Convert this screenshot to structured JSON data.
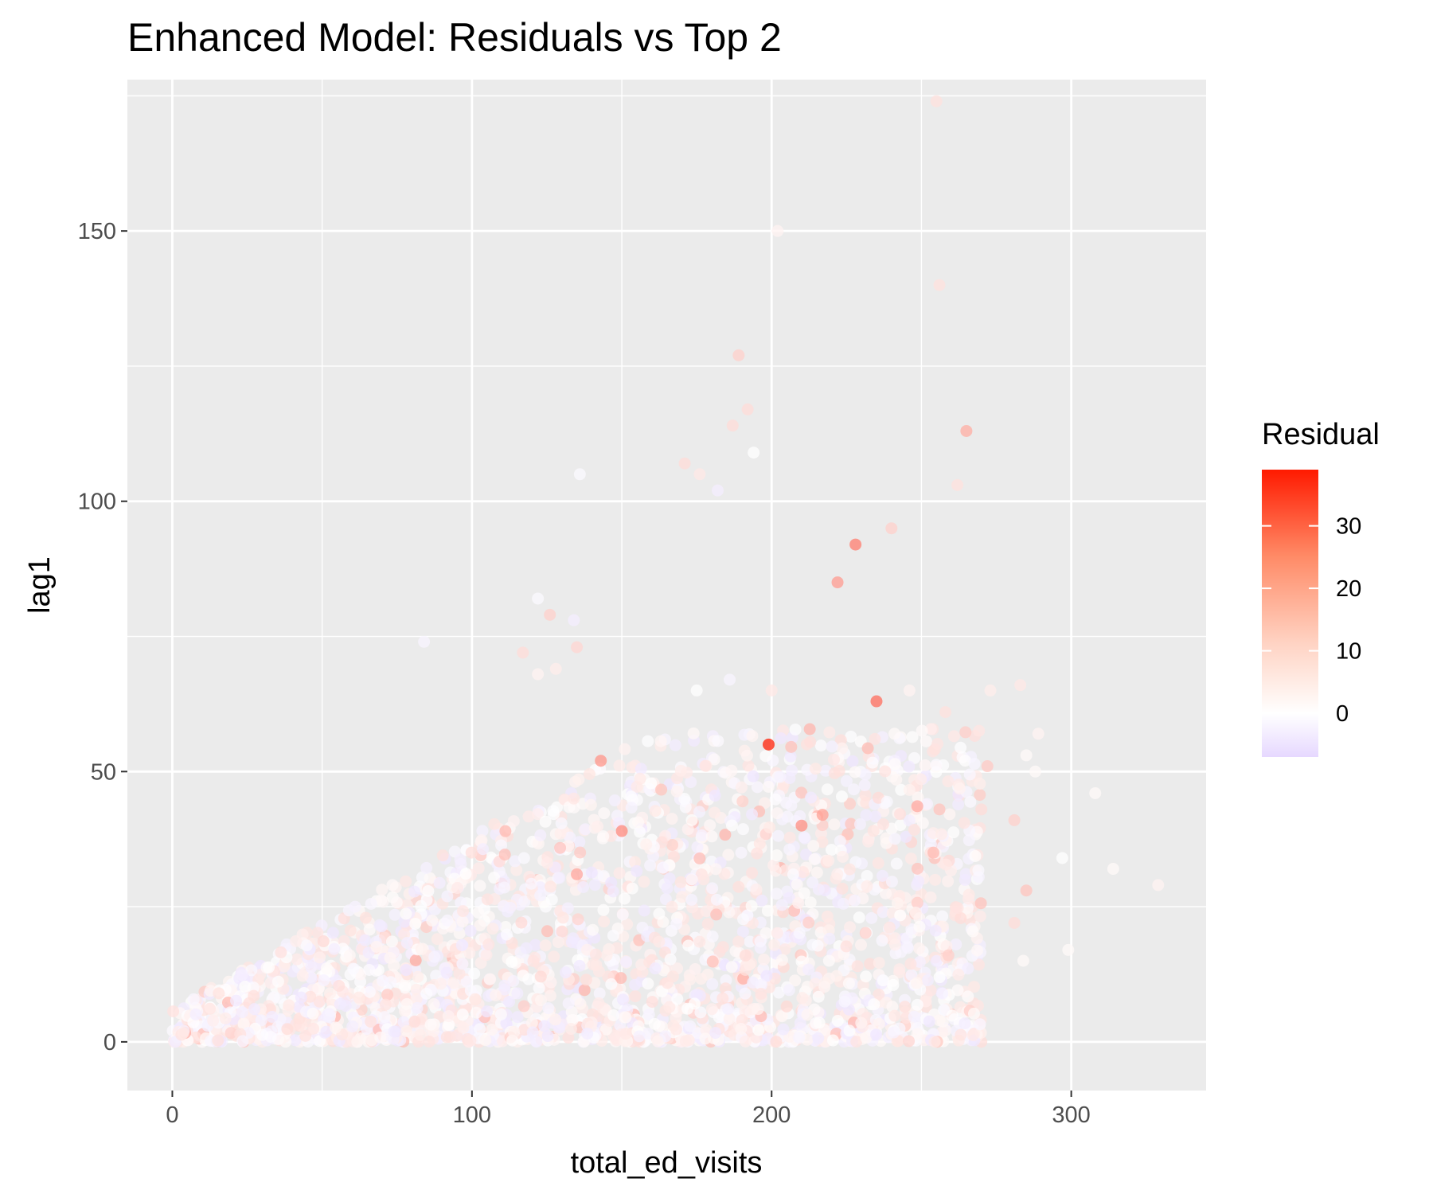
{
  "chart_data": {
    "type": "scatter",
    "title": "Enhanced Model: Residuals vs Top 2",
    "xlabel": "total_ed_visits",
    "ylabel": "lag1",
    "xlim": [
      -15,
      345
    ],
    "ylim": [
      -9,
      178
    ],
    "x_ticks": [
      0,
      100,
      200,
      300
    ],
    "y_ticks": [
      0,
      50,
      100,
      150
    ],
    "x_tick_labels": [
      "0",
      "100",
      "200",
      "300"
    ],
    "y_tick_labels": [
      "0",
      "50",
      "100",
      "150"
    ],
    "grid": true,
    "legend": {
      "title": "Residual",
      "position": "right",
      "ticks": [
        0,
        10,
        20,
        30
      ],
      "tick_labels": [
        "0",
        "10",
        "20",
        "30"
      ],
      "range": [
        -7,
        39
      ]
    },
    "colors": {
      "panel_background": "#ebebeb",
      "grid": "#ffffff",
      "high": "#ff1a00",
      "mid": "#ffffff",
      "low": "#e6d8ff"
    },
    "points": [
      {
        "x": 199,
        "y": 55,
        "residual": 38
      },
      {
        "x": 228,
        "y": 92,
        "residual": 22
      },
      {
        "x": 235,
        "y": 63,
        "residual": 25
      },
      {
        "x": 265,
        "y": 113,
        "residual": 14
      },
      {
        "x": 222,
        "y": 85,
        "residual": 17
      },
      {
        "x": 143,
        "y": 52,
        "residual": 18
      },
      {
        "x": 150,
        "y": 39,
        "residual": 20
      },
      {
        "x": 210,
        "y": 40,
        "residual": 19
      },
      {
        "x": 217,
        "y": 42,
        "residual": 16
      },
      {
        "x": 135,
        "y": 31,
        "residual": 15
      },
      {
        "x": 255,
        "y": 174,
        "residual": 5
      },
      {
        "x": 256,
        "y": 140,
        "residual": 5
      },
      {
        "x": 202,
        "y": 150,
        "residual": 2
      },
      {
        "x": 189,
        "y": 127,
        "residual": 8
      },
      {
        "x": 192,
        "y": 117,
        "residual": 6
      },
      {
        "x": 187,
        "y": 114,
        "residual": 6
      },
      {
        "x": 194,
        "y": 109,
        "residual": 0
      },
      {
        "x": 171,
        "y": 107,
        "residual": 6
      },
      {
        "x": 176,
        "y": 105,
        "residual": 4
      },
      {
        "x": 136,
        "y": 105,
        "residual": -1
      },
      {
        "x": 182,
        "y": 102,
        "residual": -3
      },
      {
        "x": 262,
        "y": 103,
        "residual": 5
      },
      {
        "x": 240,
        "y": 95,
        "residual": 8
      },
      {
        "x": 122,
        "y": 82,
        "residual": -1
      },
      {
        "x": 126,
        "y": 79,
        "residual": 8
      },
      {
        "x": 134,
        "y": 78,
        "residual": -3
      },
      {
        "x": 84,
        "y": 74,
        "residual": -2
      },
      {
        "x": 135,
        "y": 73,
        "residual": 7
      },
      {
        "x": 117,
        "y": 72,
        "residual": 6
      },
      {
        "x": 128,
        "y": 69,
        "residual": 3
      },
      {
        "x": 122,
        "y": 68,
        "residual": 2
      },
      {
        "x": 186,
        "y": 67,
        "residual": -2
      },
      {
        "x": 200,
        "y": 65,
        "residual": 4
      },
      {
        "x": 246,
        "y": 65,
        "residual": 2
      },
      {
        "x": 273,
        "y": 65,
        "residual": 3
      },
      {
        "x": 283,
        "y": 66,
        "residual": 4
      },
      {
        "x": 175,
        "y": 65,
        "residual": 0
      },
      {
        "x": 258,
        "y": 61,
        "residual": 5
      },
      {
        "x": 241,
        "y": 57,
        "residual": 1
      },
      {
        "x": 289,
        "y": 57,
        "residual": 2
      },
      {
        "x": 272,
        "y": 51,
        "residual": 9
      },
      {
        "x": 285,
        "y": 53,
        "residual": 1
      },
      {
        "x": 288,
        "y": 50,
        "residual": 1
      },
      {
        "x": 308,
        "y": 46,
        "residual": 1
      },
      {
        "x": 297,
        "y": 34,
        "residual": 0
      },
      {
        "x": 314,
        "y": 32,
        "residual": 1
      },
      {
        "x": 329,
        "y": 29,
        "residual": 2
      },
      {
        "x": 299,
        "y": 17,
        "residual": 1
      },
      {
        "x": 285,
        "y": 28,
        "residual": 10
      },
      {
        "x": 281,
        "y": 22,
        "residual": 6
      },
      {
        "x": 284,
        "y": 15,
        "residual": 1
      },
      {
        "x": 270,
        "y": 43,
        "residual": 6
      },
      {
        "x": 256,
        "y": 43,
        "residual": 10
      },
      {
        "x": 254,
        "y": 35,
        "residual": 12
      },
      {
        "x": 281,
        "y": 41,
        "residual": 8
      },
      {
        "x": 259,
        "y": 16,
        "residual": 8
      }
    ]
  }
}
